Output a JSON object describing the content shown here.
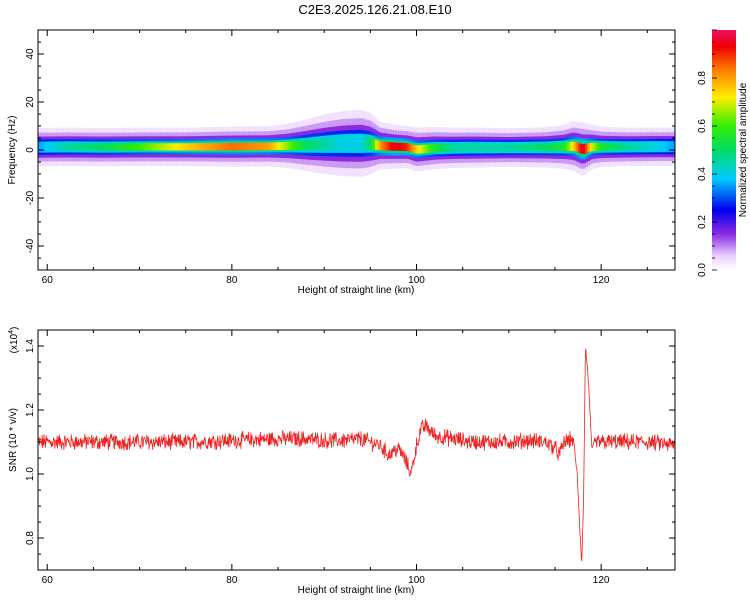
{
  "title": "C2E3.2025.126.21.08.E10",
  "chart_data": [
    {
      "type": "heatmap",
      "xlabel": "Height of straight line (km)",
      "ylabel": "Frequency (Hz)",
      "xlim": [
        59,
        128
      ],
      "ylim": [
        -50,
        50
      ],
      "x_ticks": [
        "60",
        "80",
        "100",
        "120"
      ],
      "y_ticks": [
        "-40",
        "-20",
        "0",
        "20",
        "40"
      ],
      "colorbar": {
        "label": "Normalized spectral amplitude",
        "range": [
          0,
          1
        ],
        "ticks": [
          "0.0",
          "0.2",
          "0.4",
          "0.6",
          "0.8"
        ]
      },
      "band": {
        "x": [
          59,
          62,
          66,
          70,
          75,
          80,
          84,
          86,
          88,
          90,
          92,
          94,
          95,
          96,
          97.5,
          99,
          100,
          102,
          104,
          106,
          110,
          114,
          116,
          117,
          118,
          119,
          120,
          123,
          126,
          128
        ],
        "center_hz": [
          1.2,
          1.3,
          1.2,
          1.3,
          1.3,
          1.4,
          1.5,
          1.7,
          2.0,
          2.4,
          2.7,
          2.8,
          2.6,
          1.8,
          1.4,
          1.2,
          0.2,
          0.8,
          0.9,
          1.0,
          1.0,
          1.1,
          1.3,
          1.6,
          0.3,
          1.3,
          1.3,
          1.3,
          1.4,
          1.4
        ],
        "core_halfwidth_hz": [
          2.0,
          2.0,
          2.0,
          2.0,
          2.0,
          2.1,
          2.1,
          2.3,
          2.7,
          3.1,
          3.4,
          3.5,
          3.2,
          2.5,
          2.3,
          2.2,
          2.3,
          2.2,
          2.1,
          2.1,
          2.0,
          2.1,
          2.3,
          2.6,
          2.8,
          2.3,
          2.1,
          2.0,
          2.0,
          2.0
        ],
        "peak_amplitude": [
          0.35,
          0.45,
          0.5,
          0.6,
          0.75,
          0.85,
          0.8,
          0.65,
          0.5,
          0.45,
          0.4,
          0.4,
          0.5,
          0.8,
          0.95,
          0.9,
          0.75,
          0.55,
          0.45,
          0.45,
          0.45,
          0.5,
          0.55,
          0.75,
          0.98,
          0.7,
          0.55,
          0.45,
          0.4,
          0.35
        ]
      }
    },
    {
      "type": "line",
      "xlabel": "Height of straight line (km)",
      "ylabel": "SNR (10 * v/v)",
      "y_multiplier": "(x10",
      "y_multiplier_exp": "4",
      "y_multiplier_close": ")",
      "xlim": [
        59,
        128
      ],
      "ylim": [
        0.7,
        1.45
      ],
      "x_ticks": [
        "60",
        "80",
        "100",
        "120"
      ],
      "y_ticks": [
        "0.8",
        "1.0",
        "1.2",
        "1.4"
      ],
      "series": [
        {
          "color": "#ee2222",
          "x": [
            59,
            60,
            62,
            65,
            70,
            75,
            80,
            85,
            88,
            90,
            92,
            94,
            95,
            96,
            97,
            98,
            98.5,
            99,
            99.4,
            100,
            100.5,
            101,
            102,
            104,
            106,
            108,
            110,
            112,
            114,
            115,
            115.5,
            116,
            117,
            117.4,
            117.7,
            117.9,
            118.1,
            118.3,
            118.6,
            119,
            119.5,
            120,
            122,
            125,
            128
          ],
          "y": [
            1.1,
            1.1,
            1.1,
            1.1,
            1.1,
            1.1,
            1.105,
            1.11,
            1.11,
            1.105,
            1.105,
            1.11,
            1.1,
            1.09,
            1.06,
            1.08,
            1.06,
            1.03,
            1.0,
            1.09,
            1.14,
            1.15,
            1.12,
            1.11,
            1.1,
            1.1,
            1.1,
            1.105,
            1.1,
            1.08,
            1.06,
            1.1,
            1.11,
            1.0,
            0.82,
            0.72,
            0.92,
            1.4,
            1.3,
            1.08,
            1.1,
            1.1,
            1.1,
            1.1,
            1.09
          ],
          "noise_amplitude": 0.022
        }
      ]
    }
  ]
}
